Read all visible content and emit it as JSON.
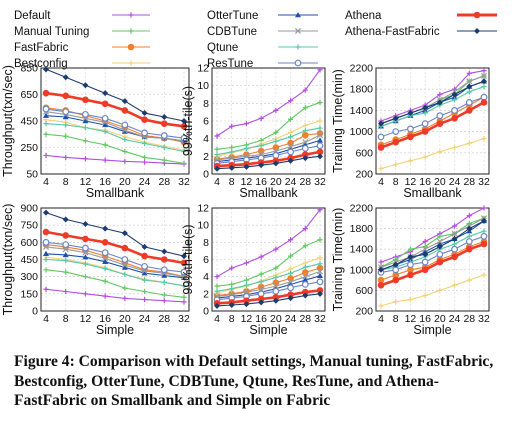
{
  "legend": {
    "series": [
      {
        "name": "Default",
        "color": "#b34ee0",
        "marker": "plus"
      },
      {
        "name": "Manual Tuning",
        "color": "#62c862",
        "marker": "plus"
      },
      {
        "name": "FastFabric",
        "color": "#f07f2e",
        "marker": "circle"
      },
      {
        "name": "Bestconfig",
        "color": "#f3d27a",
        "marker": "plus"
      },
      {
        "name": "OtterTune",
        "color": "#1f4fb0",
        "marker": "triangle"
      },
      {
        "name": "CDBTune",
        "color": "#9a9a9a",
        "marker": "x"
      },
      {
        "name": "Qtune",
        "color": "#59c7a8",
        "marker": "plus"
      },
      {
        "name": "ResTune",
        "color": "#6b86c7",
        "marker": "open-circle"
      },
      {
        "name": "Athena",
        "color": "#ee3a28",
        "marker": "circle"
      },
      {
        "name": "Athena-FastFabric",
        "color": "#1d3c6e",
        "marker": "diamond"
      }
    ]
  },
  "caption": "Figure 4: Comparison with Default settings, Manual tuning, FastFabric, Bestconfig, OtterTune, CDBTune, Qtune, ResTune, and Athena-FastFabric on Smallbank and Simple on Fabric",
  "chart_data": [
    {
      "type": "line",
      "xlabel": "Smallbank",
      "ylabel": "Throughput(txn/sec)",
      "x": [
        4,
        8,
        12,
        16,
        20,
        24,
        28,
        32
      ],
      "ylim": [
        50,
        850
      ],
      "yticks": [
        50,
        250,
        450,
        650,
        850
      ],
      "series": [
        {
          "name": "Default",
          "values": [
            190,
            175,
            165,
            155,
            145,
            140,
            132,
            125
          ]
        },
        {
          "name": "Manual Tuning",
          "values": [
            350,
            335,
            300,
            270,
            220,
            175,
            155,
            130
          ]
        },
        {
          "name": "FastFabric",
          "values": [
            550,
            530,
            490,
            450,
            400,
            340,
            320,
            290
          ]
        },
        {
          "name": "Bestconfig",
          "values": [
            460,
            440,
            400,
            380,
            330,
            290,
            260,
            230
          ]
        },
        {
          "name": "OtterTune",
          "values": [
            490,
            480,
            450,
            420,
            370,
            330,
            320,
            300
          ]
        },
        {
          "name": "CDBTune",
          "values": [
            520,
            500,
            470,
            440,
            380,
            330,
            320,
            300
          ]
        },
        {
          "name": "Qtune",
          "values": [
            430,
            420,
            400,
            370,
            310,
            280,
            250,
            220
          ]
        },
        {
          "name": "ResTune",
          "values": [
            540,
            520,
            500,
            470,
            420,
            360,
            340,
            320
          ]
        },
        {
          "name": "Athena",
          "values": [
            660,
            640,
            610,
            580,
            530,
            460,
            430,
            410
          ]
        },
        {
          "name": "Athena-FastFabric",
          "values": [
            840,
            780,
            720,
            660,
            600,
            510,
            480,
            450
          ]
        }
      ]
    },
    {
      "type": "line",
      "xlabel": "Smallbank",
      "ylabel": "99%th-tile(s)",
      "x": [
        4,
        8,
        12,
        16,
        20,
        24,
        28,
        32
      ],
      "ylim": [
        0,
        12
      ],
      "yticks": [
        0,
        2,
        4,
        6,
        8,
        10,
        12
      ],
      "series": [
        {
          "name": "Default",
          "values": [
            4.3,
            5.4,
            5.7,
            6.3,
            7.2,
            8.3,
            9.5,
            11.8
          ]
        },
        {
          "name": "Manual Tuning",
          "values": [
            2.8,
            3.0,
            3.3,
            3.8,
            4.7,
            6.2,
            7.5,
            8.1
          ]
        },
        {
          "name": "FastFabric",
          "values": [
            1.7,
            1.9,
            2.2,
            2.6,
            3.0,
            3.5,
            4.4,
            4.6
          ]
        },
        {
          "name": "Bestconfig",
          "values": [
            2.0,
            2.4,
            2.8,
            3.4,
            4.0,
            4.7,
            5.5,
            6.0
          ]
        },
        {
          "name": "OtterTune",
          "values": [
            1.4,
            1.6,
            1.8,
            2.0,
            2.3,
            2.8,
            3.3,
            3.8
          ]
        },
        {
          "name": "CDBTune",
          "values": [
            1.6,
            1.8,
            2.0,
            2.2,
            2.6,
            3.1,
            3.6,
            4.4
          ]
        },
        {
          "name": "Qtune",
          "values": [
            2.2,
            2.5,
            2.9,
            3.2,
            3.7,
            4.2,
            4.9,
            5.2
          ]
        },
        {
          "name": "ResTune",
          "values": [
            1.2,
            1.4,
            1.6,
            1.8,
            2.1,
            2.5,
            2.9,
            3.2
          ]
        },
        {
          "name": "Athena",
          "values": [
            0.9,
            1.0,
            1.1,
            1.3,
            1.5,
            1.8,
            2.2,
            2.5
          ]
        },
        {
          "name": "Athena-FastFabric",
          "values": [
            0.6,
            0.7,
            0.8,
            1.0,
            1.2,
            1.5,
            1.8,
            2.0
          ]
        }
      ]
    },
    {
      "type": "line",
      "xlabel": "Smallbank",
      "ylabel": "Training Time(min)",
      "x": [
        4,
        8,
        12,
        16,
        20,
        24,
        28,
        32
      ],
      "ylim": [
        200,
        2200
      ],
      "yticks": [
        200,
        600,
        1000,
        1400,
        1800,
        2200
      ],
      "series": [
        {
          "name": "Default",
          "values": [
            1200,
            1300,
            1400,
            1500,
            1700,
            1800,
            2100,
            2150
          ]
        },
        {
          "name": "Manual Tuning",
          "values": [
            1150,
            1250,
            1350,
            1450,
            1600,
            1700,
            1950,
            2050
          ]
        },
        {
          "name": "FastFabric",
          "values": [
            750,
            850,
            950,
            1050,
            1200,
            1350,
            1500,
            1650
          ]
        },
        {
          "name": "Bestconfig",
          "values": [
            300,
            380,
            450,
            520,
            620,
            700,
            780,
            870
          ]
        },
        {
          "name": "OtterTune",
          "values": [
            1100,
            1200,
            1300,
            1400,
            1550,
            1650,
            1850,
            1950
          ]
        },
        {
          "name": "CDBTune",
          "values": [
            1150,
            1250,
            1350,
            1450,
            1600,
            1750,
            1950,
            2050
          ]
        },
        {
          "name": "Qtune",
          "values": [
            1100,
            1200,
            1300,
            1350,
            1500,
            1600,
            1750,
            1850
          ]
        },
        {
          "name": "ResTune",
          "values": [
            900,
            1000,
            1050,
            1150,
            1300,
            1400,
            1550,
            1650
          ]
        },
        {
          "name": "Athena",
          "values": [
            700,
            800,
            900,
            1000,
            1150,
            1250,
            1400,
            1550
          ]
        },
        {
          "name": "Athena-FastFabric",
          "values": [
            1150,
            1250,
            1350,
            1450,
            1550,
            1700,
            1850,
            1950
          ]
        }
      ]
    },
    {
      "type": "line",
      "xlabel": "Simple",
      "ylabel": "Throughput(txn/sec)",
      "x": [
        4,
        8,
        12,
        16,
        20,
        24,
        28,
        32
      ],
      "ylim": [
        0,
        900
      ],
      "yticks": [
        0,
        150,
        300,
        450,
        600,
        750,
        900
      ],
      "series": [
        {
          "name": "Default",
          "values": [
            190,
            170,
            150,
            130,
            110,
            100,
            90,
            80
          ]
        },
        {
          "name": "Manual Tuning",
          "values": [
            360,
            340,
            300,
            260,
            200,
            170,
            140,
            120
          ]
        },
        {
          "name": "FastFabric",
          "values": [
            580,
            560,
            530,
            480,
            420,
            360,
            340,
            300
          ]
        },
        {
          "name": "Bestconfig",
          "values": [
            470,
            450,
            420,
            380,
            320,
            280,
            250,
            220
          ]
        },
        {
          "name": "OtterTune",
          "values": [
            500,
            490,
            470,
            430,
            380,
            330,
            310,
            290
          ]
        },
        {
          "name": "CDBTune",
          "values": [
            560,
            540,
            510,
            460,
            400,
            350,
            330,
            300
          ]
        },
        {
          "name": "Qtune",
          "values": [
            450,
            440,
            410,
            370,
            320,
            270,
            250,
            220
          ]
        },
        {
          "name": "ResTune",
          "values": [
            600,
            580,
            550,
            510,
            450,
            390,
            360,
            340
          ]
        },
        {
          "name": "Athena",
          "values": [
            690,
            660,
            630,
            600,
            550,
            480,
            450,
            420
          ]
        },
        {
          "name": "Athena-FastFabric",
          "values": [
            860,
            800,
            760,
            720,
            680,
            560,
            520,
            480
          ]
        }
      ]
    },
    {
      "type": "line",
      "xlabel": "Simple",
      "ylabel": "99%th-tile(s)",
      "x": [
        4,
        8,
        12,
        16,
        20,
        24,
        28,
        32
      ],
      "ylim": [
        0,
        12
      ],
      "yticks": [
        0,
        2,
        4,
        6,
        8,
        10,
        12
      ],
      "series": [
        {
          "name": "Default",
          "values": [
            4.0,
            5.0,
            5.6,
            6.3,
            7.2,
            8.3,
            9.6,
            11.8
          ]
        },
        {
          "name": "Manual Tuning",
          "values": [
            2.9,
            3.1,
            3.6,
            4.3,
            5.0,
            6.4,
            7.6,
            8.3
          ]
        },
        {
          "name": "FastFabric",
          "values": [
            1.8,
            2.0,
            2.3,
            2.8,
            3.3,
            3.8,
            4.5,
            5.0
          ]
        },
        {
          "name": "Bestconfig",
          "values": [
            2.1,
            2.5,
            2.9,
            3.5,
            4.2,
            4.9,
            5.6,
            6.2
          ]
        },
        {
          "name": "OtterTune",
          "values": [
            1.5,
            1.7,
            1.9,
            2.2,
            2.6,
            3.1,
            3.6,
            4.1
          ]
        },
        {
          "name": "CDBTune",
          "values": [
            1.7,
            1.9,
            2.2,
            2.5,
            2.9,
            3.4,
            4.0,
            4.6
          ]
        },
        {
          "name": "Qtune",
          "values": [
            2.3,
            2.6,
            3.0,
            3.4,
            3.9,
            4.4,
            5.1,
            5.5
          ]
        },
        {
          "name": "ResTune",
          "values": [
            1.3,
            1.5,
            1.7,
            2.0,
            2.3,
            2.7,
            3.1,
            3.4
          ]
        },
        {
          "name": "Athena",
          "values": [
            0.9,
            1.0,
            1.2,
            1.4,
            1.6,
            1.9,
            2.2,
            2.4
          ]
        },
        {
          "name": "Athena-FastFabric",
          "values": [
            0.6,
            0.7,
            0.8,
            1.0,
            1.2,
            1.5,
            1.8,
            2.0
          ]
        }
      ]
    },
    {
      "type": "line",
      "xlabel": "Simple",
      "ylabel": "Training Time(min)",
      "x": [
        4,
        8,
        12,
        16,
        20,
        24,
        28,
        32
      ],
      "ylim": [
        200,
        2200
      ],
      "yticks": [
        200,
        600,
        1000,
        1400,
        1800,
        2200
      ],
      "series": [
        {
          "name": "Default",
          "values": [
            1150,
            1250,
            1350,
            1550,
            1700,
            1850,
            2050,
            2200
          ]
        },
        {
          "name": "Manual Tuning",
          "values": [
            1050,
            1200,
            1400,
            1450,
            1650,
            1700,
            1900,
            2000
          ]
        },
        {
          "name": "FastFabric",
          "values": [
            800,
            900,
            1000,
            1050,
            1200,
            1300,
            1450,
            1550
          ]
        },
        {
          "name": "Bestconfig",
          "values": [
            300,
            380,
            420,
            500,
            600,
            700,
            800,
            900
          ]
        },
        {
          "name": "OtterTune",
          "values": [
            1000,
            1100,
            1200,
            1350,
            1500,
            1600,
            1750,
            1950
          ]
        },
        {
          "name": "CDBTune",
          "values": [
            1050,
            1150,
            1250,
            1400,
            1550,
            1700,
            1850,
            2000
          ]
        },
        {
          "name": "Qtune",
          "values": [
            1000,
            1050,
            1150,
            1250,
            1400,
            1500,
            1650,
            1750
          ]
        },
        {
          "name": "ResTune",
          "values": [
            950,
            1000,
            1100,
            1150,
            1300,
            1400,
            1550,
            1650
          ]
        },
        {
          "name": "Athena",
          "values": [
            700,
            800,
            900,
            1000,
            1150,
            1250,
            1400,
            1500
          ]
        },
        {
          "name": "Athena-FastFabric",
          "values": [
            1000,
            1100,
            1250,
            1300,
            1450,
            1600,
            1800,
            1950
          ]
        }
      ]
    }
  ]
}
